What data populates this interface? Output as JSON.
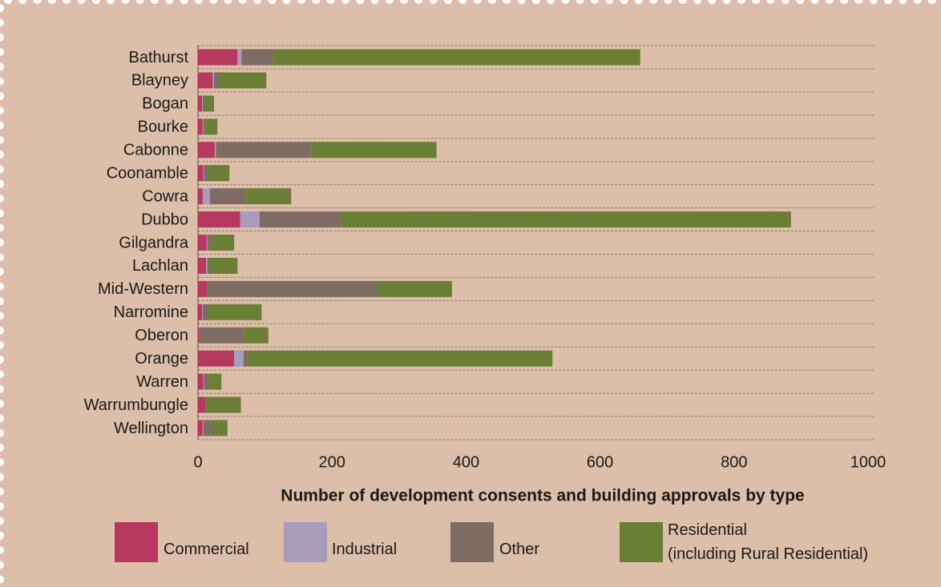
{
  "chart_data": {
    "type": "stacked-barh",
    "xlabel": "Number of development consents and building approvals by type",
    "categories": [
      "Bathurst",
      "Blayney",
      "Bogan",
      "Bourke",
      "Cabonne",
      "Coonamble",
      "Cowra",
      "Dubbo",
      "Gilgandra",
      "Lachlan",
      "Mid-Western",
      "Narromine",
      "Oberon",
      "Orange",
      "Warren",
      "Warrumbungle",
      "Wellington"
    ],
    "series": [
      {
        "name": "Commercial",
        "color": "#b8395f",
        "values": [
          59,
          22,
          6,
          7,
          25,
          8,
          7,
          63,
          13,
          12,
          14,
          6,
          2,
          54,
          8,
          11,
          7
        ]
      },
      {
        "name": "Industrial",
        "color": "#a99bbb",
        "values": [
          6,
          2,
          1,
          1,
          2,
          1,
          11,
          29,
          1,
          2,
          0,
          1,
          0,
          14,
          1,
          0,
          1
        ]
      },
      {
        "name": "Other",
        "color": "#7d6b64",
        "values": [
          47,
          7,
          3,
          3,
          142,
          6,
          54,
          121,
          5,
          4,
          254,
          8,
          66,
          6,
          7,
          1,
          13
        ]
      },
      {
        "name": "Residential\n(including Rural Residential)",
        "color": "#6b7e35",
        "values": [
          548,
          71,
          14,
          18,
          187,
          32,
          67,
          672,
          35,
          41,
          111,
          80,
          37,
          455,
          19,
          52,
          23
        ]
      }
    ],
    "xlim": [
      0,
      1000
    ],
    "xticks": [
      0,
      200,
      400,
      600,
      800,
      1000
    ],
    "grid": true
  }
}
